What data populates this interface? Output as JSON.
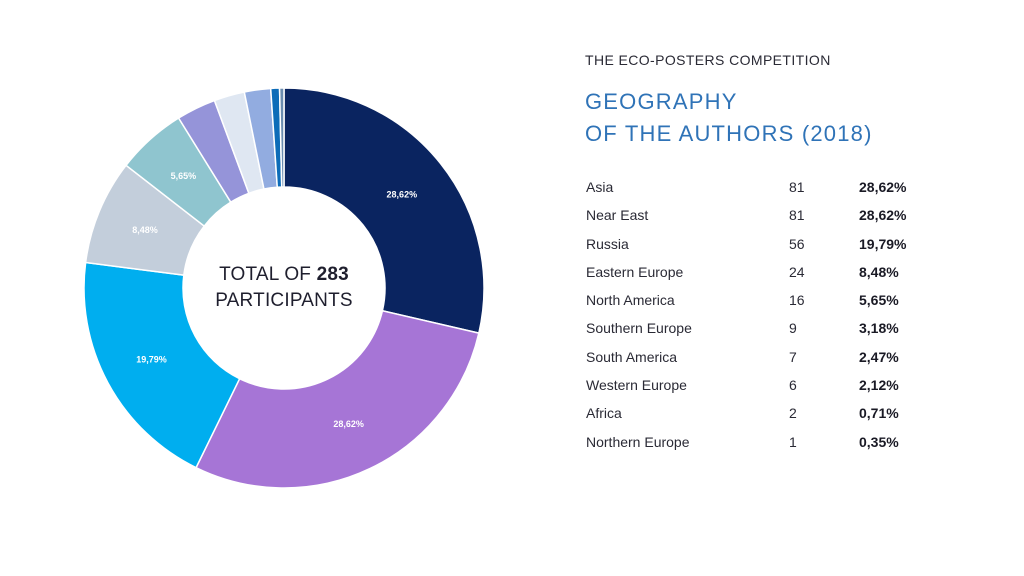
{
  "header": {
    "eyebrow": "THE ECO-POSTERS COMPETITION",
    "title_line1": "GEOGRAPHY",
    "title_line2": "OF THE AUTHORS (2018)"
  },
  "center": {
    "prefix": "TOTAL OF",
    "total": "283",
    "suffix": "PARTICIPANTS"
  },
  "table": {
    "rows": [
      {
        "region": "Asia",
        "count": "81",
        "pct": "28,62%"
      },
      {
        "region": "Near East",
        "count": "81",
        "pct": "28,62%"
      },
      {
        "region": "Russia",
        "count": "56",
        "pct": "19,79%"
      },
      {
        "region": "Eastern Europe",
        "count": "24",
        "pct": "8,48%"
      },
      {
        "region": "North America",
        "count": "16",
        "pct": "5,65%"
      },
      {
        "region": "Southern Europe",
        "count": "9",
        "pct": "3,18%"
      },
      {
        "region": "South America",
        "count": "7",
        "pct": "2,47%"
      },
      {
        "region": "Western Europe",
        "count": "6",
        "pct": "2,12%"
      },
      {
        "region": "Africa",
        "count": "2",
        "pct": "0,71%"
      },
      {
        "region": "Northern Europe",
        "count": "1",
        "pct": "0,35%"
      }
    ]
  },
  "chart_data": {
    "type": "pie",
    "variant": "donut",
    "title": "GEOGRAPHY OF THE AUTHORS (2018)",
    "categories": [
      "Asia",
      "Near East",
      "Russia",
      "Eastern Europe",
      "North America",
      "Southern Europe",
      "South America",
      "Western Europe",
      "Africa",
      "Northern Europe"
    ],
    "values": [
      81,
      81,
      56,
      24,
      16,
      9,
      7,
      6,
      2,
      1
    ],
    "labels": [
      "28,62%",
      "28,62%",
      "19,79%",
      "8,48%",
      "5,65%",
      "",
      "",
      "",
      "",
      ""
    ],
    "colors": [
      "#0a2460",
      "#a675d6",
      "#00aeef",
      "#c3cedb",
      "#8fc5cf",
      "#9594d9",
      "#dfe7f2",
      "#92ace0",
      "#0d6cb8",
      "#6a8caf"
    ],
    "total": 283,
    "start_angle_deg": 0,
    "direction": "clockwise",
    "legend": "none"
  }
}
